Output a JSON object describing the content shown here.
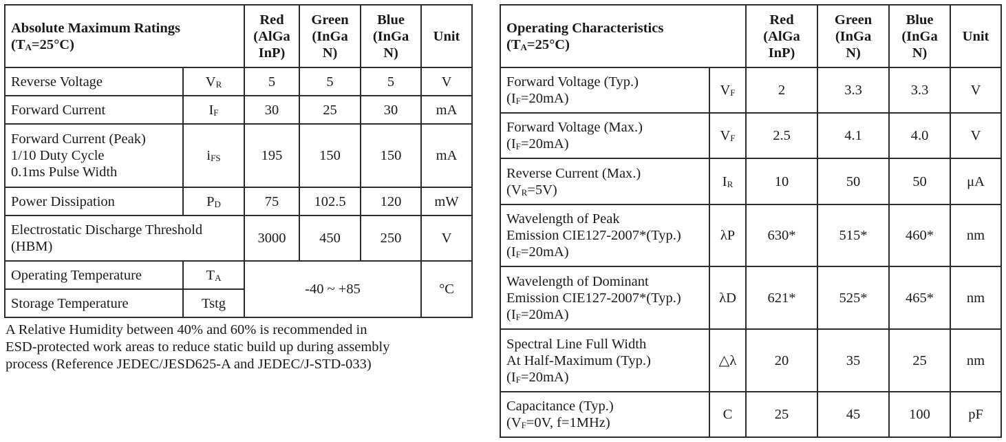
{
  "left_table": {
    "title": "Absolute Maximum Ratings",
    "condition": {
      "prefix": "(T",
      "sub": "A",
      "suffix": "=25°C)"
    },
    "columns": [
      {
        "lines": [
          "Red",
          "(AlGa",
          "InP)"
        ]
      },
      {
        "lines": [
          "Green",
          "(InGa",
          "N)"
        ]
      },
      {
        "lines": [
          "Blue",
          "(InGa",
          "N)"
        ]
      },
      {
        "lines": [
          "Unit"
        ]
      }
    ],
    "rows": [
      {
        "param": [
          "Reverse Voltage"
        ],
        "sym_main": "V",
        "sym_sub": "R",
        "red": "5",
        "green": "5",
        "blue": "5",
        "unit": "V"
      },
      {
        "param": [
          "Forward Current"
        ],
        "sym_main": "I",
        "sym_sub": "F",
        "red": "30",
        "green": "25",
        "blue": "30",
        "unit": "mA"
      },
      {
        "param": [
          "Forward Current (Peak)",
          "1/10 Duty Cycle",
          "0.1ms Pulse Width"
        ],
        "sym_main": "i",
        "sym_sub": "FS",
        "red": "195",
        "green": "150",
        "blue": "150",
        "unit": "mA"
      },
      {
        "param": [
          "Power Dissipation"
        ],
        "sym_main": "P",
        "sym_sub": "D",
        "red": "75",
        "green": "102.5",
        "blue": "120",
        "unit": "mW"
      },
      {
        "param": [
          "Electrostatic Discharge Threshold",
          "(HBM)"
        ],
        "red": "3000",
        "green": "450",
        "blue": "250",
        "unit": "V"
      },
      {
        "param": [
          "Operating Temperature"
        ],
        "sym_main": "T",
        "sym_sub": "A"
      },
      {
        "param": [
          "Storage Temperature"
        ],
        "sym_main": "Tstg"
      }
    ],
    "temp_range": "-40 ~ +85",
    "temp_unit": "°C"
  },
  "note": [
    "A Relative Humidity between 40% and 60% is recommended in",
    "ESD-protected work areas to reduce static build up during assembly",
    "process (Reference JEDEC/JESD625-A and JEDEC/J-STD-033)"
  ],
  "right_table": {
    "title": "Operating Characteristics",
    "condition": {
      "prefix": "(T",
      "sub": "A",
      "suffix": "=25°C)"
    },
    "columns": [
      {
        "lines": [
          "Red",
          "(AlGa",
          "InP)"
        ]
      },
      {
        "lines": [
          "Green",
          "(InGa",
          "N)"
        ]
      },
      {
        "lines": [
          "Blue",
          "(InGa",
          "N)"
        ]
      },
      {
        "lines": [
          "Unit"
        ]
      }
    ],
    "rows": [
      {
        "param": [
          "Forward Voltage (Typ.)"
        ],
        "cond": {
          "prefix": "(I",
          "sub": "F",
          "suffix": "=20mA)"
        },
        "sym_main": "V",
        "sym_sub": "F",
        "red": "2",
        "green": "3.3",
        "blue": "3.3",
        "unit": "V"
      },
      {
        "param": [
          "Forward Voltage (Max.)"
        ],
        "cond": {
          "prefix": "(I",
          "sub": "F",
          "suffix": "=20mA)"
        },
        "sym_main": "V",
        "sym_sub": "F",
        "red": "2.5",
        "green": "4.1",
        "blue": "4.0",
        "unit": "V"
      },
      {
        "param": [
          "Reverse Current (Max.)"
        ],
        "cond": {
          "prefix": "(V",
          "sub": "R",
          "suffix": "=5V)"
        },
        "sym_main": "I",
        "sym_sub": "R",
        "red": "10",
        "green": "50",
        "blue": "50",
        "unit": "μA"
      },
      {
        "param": [
          "Wavelength of Peak",
          "Emission CIE127-2007*(Typ.)"
        ],
        "cond": {
          "prefix": "(I",
          "sub": "F",
          "suffix": "=20mA)"
        },
        "sym_main": "λP",
        "red": "630*",
        "green": "515*",
        "blue": "460*",
        "unit": "nm"
      },
      {
        "param": [
          "Wavelength of Dominant",
          "Emission CIE127-2007*(Typ.)"
        ],
        "cond": {
          "prefix": "(I",
          "sub": "F",
          "suffix": "=20mA)"
        },
        "sym_main": "λD",
        "red": "621*",
        "green": "525*",
        "blue": "465*",
        "unit": "nm"
      },
      {
        "param": [
          "Spectral Line Full Width",
          "At Half-Maximum (Typ.)"
        ],
        "cond": {
          "prefix": "(I",
          "sub": "F",
          "suffix": "=20mA)"
        },
        "sym_main": "△λ",
        "red": "20",
        "green": "35",
        "blue": "25",
        "unit": "nm"
      },
      {
        "param": [
          "Capacitance (Typ.)"
        ],
        "cond": {
          "prefix": "(V",
          "sub": "F",
          "suffix": "=0V, f=1MHz)"
        },
        "sym_main": "C",
        "red": "25",
        "green": "45",
        "blue": "100",
        "unit": "pF"
      }
    ]
  }
}
